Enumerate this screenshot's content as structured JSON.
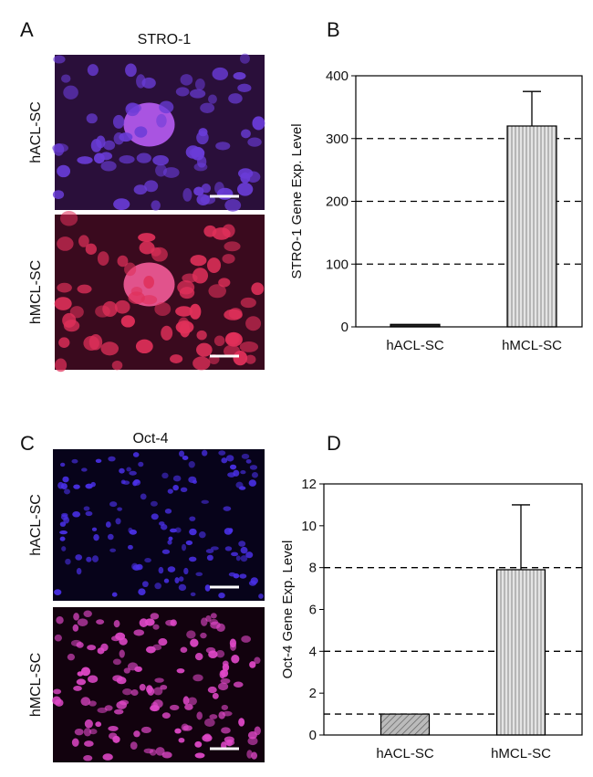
{
  "panels": [
    {
      "label": "A",
      "title": "STRO-1",
      "images": [
        "hACL-SC",
        "hMCL-SC"
      ]
    },
    {
      "label": "C",
      "title": "Oct-4",
      "images": [
        "hACL-SC",
        "hMCL-SC"
      ]
    }
  ],
  "chart_data": [
    {
      "type": "bar",
      "label": "B",
      "y_label": "STRO-1 Gene Exp. Level",
      "categories": [
        "hACL-SC",
        "hMCL-SC"
      ],
      "values": [
        4,
        320
      ],
      "errors": [
        null,
        55
      ],
      "ylim": [
        0,
        400
      ],
      "yticks": [
        0,
        100,
        200,
        300,
        400
      ],
      "hlines": [
        100,
        200,
        300
      ]
    },
    {
      "type": "bar",
      "label": "D",
      "y_label": "Oct-4 Gene Exp. Level",
      "categories": [
        "hACL-SC",
        "hMCL-SC"
      ],
      "values": [
        1,
        7.9
      ],
      "errors": [
        null,
        3.1
      ],
      "ylim": [
        0,
        12
      ],
      "yticks": [
        0,
        2,
        4,
        6,
        8,
        10,
        12
      ],
      "hlines": [
        1,
        4,
        8
      ]
    }
  ]
}
